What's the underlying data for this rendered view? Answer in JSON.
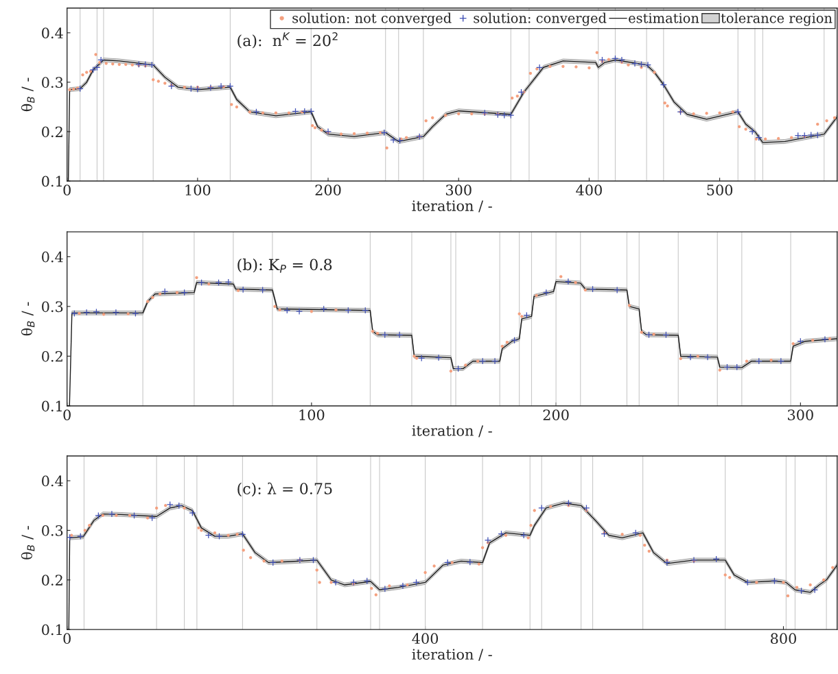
{
  "chart_data": [
    {
      "type": "line",
      "xlabel": "iteration / -",
      "ylabel": "θ$_{B}$ / -",
      "annotations": [
        "(a):  n$^{K}$ = 20$^{2}$"
      ],
      "legend": "top right",
      "xlim": [
        0,
        590
      ],
      "ylim": [
        0.1,
        0.45
      ],
      "xticks": [
        0,
        100,
        200,
        300,
        400,
        500
      ],
      "yticks": [
        0.1,
        0.2,
        0.3,
        0.4
      ],
      "grid": false,
      "ref_lines": [
        {
          "axis": "x",
          "value": 10,
          "color": "#c8c8c8"
        },
        {
          "axis": "x",
          "value": 23,
          "color": "#c8c8c8"
        },
        {
          "axis": "x",
          "value": 28,
          "color": "#c8c8c8"
        },
        {
          "axis": "x",
          "value": 66,
          "color": "#c8c8c8"
        },
        {
          "axis": "x",
          "value": 125,
          "color": "#c8c8c8"
        },
        {
          "axis": "x",
          "value": 187,
          "color": "#c8c8c8"
        },
        {
          "axis": "x",
          "value": 244,
          "color": "#c8c8c8"
        },
        {
          "axis": "x",
          "value": 254,
          "color": "#c8c8c8"
        },
        {
          "axis": "x",
          "value": 273,
          "color": "#c8c8c8"
        },
        {
          "axis": "x",
          "value": 340,
          "color": "#c8c8c8"
        },
        {
          "axis": "x",
          "value": 354,
          "color": "#c8c8c8"
        },
        {
          "axis": "x",
          "value": 407,
          "color": "#c8c8c8"
        },
        {
          "axis": "x",
          "value": 420,
          "color": "#c8c8c8"
        },
        {
          "axis": "x",
          "value": 444,
          "color": "#c8c8c8"
        },
        {
          "axis": "x",
          "value": 457,
          "color": "#c8c8c8"
        },
        {
          "axis": "x",
          "value": 514,
          "color": "#c8c8c8"
        },
        {
          "axis": "x",
          "value": 527,
          "color": "#c8c8c8"
        },
        {
          "axis": "x",
          "value": 533,
          "color": "#c8c8c8"
        },
        {
          "axis": "x",
          "value": 580,
          "color": "#c8c8c8"
        }
      ],
      "series": [
        {
          "name": "solution: not converged",
          "type": "scatter",
          "marker": "circle",
          "color": "#f4a07f",
          "x": [
            2,
            5,
            8,
            12,
            15,
            18,
            22,
            25,
            30,
            35,
            40,
            45,
            50,
            55,
            60,
            66,
            70,
            75,
            80,
            90,
            100,
            110,
            120,
            126,
            130,
            140,
            150,
            160,
            170,
            180,
            188,
            190,
            195,
            200,
            210,
            220,
            230,
            240,
            245,
            256,
            260,
            270,
            275,
            280,
            290,
            300,
            310,
            320,
            330,
            341,
            345,
            350,
            355,
            360,
            370,
            380,
            390,
            400,
            406,
            410,
            415,
            425,
            430,
            440,
            450,
            458,
            460,
            470,
            480,
            490,
            500,
            510,
            515,
            520,
            528,
            535,
            545,
            555,
            565,
            575,
            582,
            588
          ],
          "values": [
            0.285,
            0.286,
            0.288,
            0.315,
            0.32,
            0.322,
            0.356,
            0.34,
            0.338,
            0.337,
            0.336,
            0.336,
            0.335,
            0.334,
            0.333,
            0.305,
            0.302,
            0.298,
            0.294,
            0.29,
            0.29,
            0.29,
            0.291,
            0.255,
            0.25,
            0.24,
            0.238,
            0.238,
            0.238,
            0.24,
            0.212,
            0.208,
            0.203,
            0.198,
            0.195,
            0.196,
            0.197,
            0.198,
            0.167,
            0.185,
            0.188,
            0.19,
            0.222,
            0.228,
            0.233,
            0.236,
            0.236,
            0.236,
            0.236,
            0.268,
            0.272,
            0.28,
            0.318,
            0.327,
            0.332,
            0.332,
            0.331,
            0.329,
            0.36,
            0.342,
            0.346,
            0.34,
            0.335,
            0.33,
            0.32,
            0.258,
            0.252,
            0.24,
            0.236,
            0.237,
            0.238,
            0.24,
            0.21,
            0.205,
            0.185,
            0.185,
            0.186,
            0.188,
            0.19,
            0.215,
            0.222,
            0.228
          ]
        },
        {
          "name": "solution: converged",
          "type": "scatter",
          "marker": "cross",
          "color": "#3f4fb4",
          "x": [
            10,
            20,
            23,
            26,
            55,
            60,
            65,
            80,
            95,
            100,
            110,
            118,
            125,
            145,
            175,
            182,
            187,
            200,
            243,
            250,
            255,
            270,
            320,
            330,
            335,
            340,
            348,
            362,
            410,
            420,
            425,
            435,
            440,
            445,
            457,
            470,
            514,
            525,
            530,
            560,
            565,
            570,
            575
          ],
          "values": [
            0.287,
            0.325,
            0.33,
            0.345,
            0.336,
            0.336,
            0.335,
            0.292,
            0.287,
            0.286,
            0.289,
            0.292,
            0.292,
            0.24,
            0.241,
            0.241,
            0.241,
            0.2,
            0.198,
            0.183,
            0.182,
            0.19,
            0.238,
            0.234,
            0.233,
            0.233,
            0.28,
            0.33,
            0.345,
            0.348,
            0.345,
            0.338,
            0.336,
            0.335,
            0.295,
            0.24,
            0.24,
            0.2,
            0.188,
            0.192,
            0.192,
            0.193,
            0.193
          ]
        },
        {
          "name": "estimation",
          "type": "line",
          "line_style": "solid",
          "color": "#1a1a1a",
          "x": [
            0,
            1,
            2,
            10,
            15,
            20,
            28,
            40,
            66,
            75,
            85,
            100,
            125,
            130,
            140,
            160,
            187,
            192,
            200,
            220,
            244,
            250,
            254,
            273,
            280,
            290,
            300,
            340,
            350,
            365,
            380,
            405,
            407,
            412,
            420,
            444,
            450,
            457,
            465,
            475,
            490,
            514,
            520,
            527,
            533,
            550,
            570,
            580,
            590
          ],
          "values": [
            0.1,
            0.1,
            0.285,
            0.287,
            0.3,
            0.325,
            0.345,
            0.343,
            0.335,
            0.31,
            0.29,
            0.285,
            0.29,
            0.265,
            0.24,
            0.232,
            0.24,
            0.21,
            0.195,
            0.19,
            0.198,
            0.187,
            0.18,
            0.19,
            0.21,
            0.235,
            0.242,
            0.235,
            0.28,
            0.33,
            0.343,
            0.34,
            0.33,
            0.34,
            0.345,
            0.335,
            0.32,
            0.295,
            0.26,
            0.235,
            0.225,
            0.24,
            0.215,
            0.2,
            0.178,
            0.18,
            0.19,
            0.195,
            0.23
          ],
          "lower": [
            null,
            null,
            0.281,
            0.283,
            0.296,
            0.321,
            0.341,
            0.339,
            0.331,
            0.306,
            0.286,
            0.281,
            0.286,
            0.261,
            0.236,
            0.228,
            0.236,
            0.206,
            0.191,
            0.186,
            0.194,
            0.183,
            0.176,
            0.186,
            0.206,
            0.231,
            0.238,
            0.231,
            0.276,
            0.326,
            0.339,
            0.336,
            0.326,
            0.336,
            0.341,
            0.331,
            0.316,
            0.291,
            0.256,
            0.231,
            0.221,
            0.236,
            0.211,
            0.196,
            0.174,
            0.176,
            0.186,
            0.191,
            0.226
          ],
          "upper": [
            null,
            null,
            0.289,
            0.291,
            0.304,
            0.329,
            0.349,
            0.347,
            0.339,
            0.314,
            0.294,
            0.289,
            0.294,
            0.269,
            0.244,
            0.236,
            0.244,
            0.214,
            0.199,
            0.194,
            0.202,
            0.191,
            0.184,
            0.194,
            0.214,
            0.239,
            0.246,
            0.239,
            0.284,
            0.334,
            0.347,
            0.344,
            0.334,
            0.344,
            0.349,
            0.339,
            0.324,
            0.299,
            0.264,
            0.239,
            0.229,
            0.244,
            0.219,
            0.204,
            0.182,
            0.184,
            0.194,
            0.199,
            0.234
          ]
        },
        {
          "name": "tolerance region",
          "type": "area",
          "color": "#d3d3d3"
        }
      ]
    },
    {
      "type": "line",
      "xlabel": "iteration / -",
      "ylabel": "θ$_{B}$ / -",
      "annotations": [
        "(b): K$_{P}$ = 0.8"
      ],
      "xlim": [
        0,
        315
      ],
      "ylim": [
        0.1,
        0.45
      ],
      "xticks": [
        0,
        100,
        200,
        300
      ],
      "yticks": [
        0.1,
        0.2,
        0.3,
        0.4
      ],
      "grid": false,
      "ref_lines": [
        {
          "axis": "x",
          "value": 31,
          "color": "#c8c8c8"
        },
        {
          "axis": "x",
          "value": 52,
          "color": "#c8c8c8"
        },
        {
          "axis": "x",
          "value": 68,
          "color": "#c8c8c8"
        },
        {
          "axis": "x",
          "value": 84,
          "color": "#c8c8c8"
        },
        {
          "axis": "x",
          "value": 124,
          "color": "#c8c8c8"
        },
        {
          "axis": "x",
          "value": 141,
          "color": "#c8c8c8"
        },
        {
          "axis": "x",
          "value": 157,
          "color": "#c8c8c8"
        },
        {
          "axis": "x",
          "value": 159,
          "color": "#c8c8c8"
        },
        {
          "axis": "x",
          "value": 177,
          "color": "#c8c8c8"
        },
        {
          "axis": "x",
          "value": 185,
          "color": "#c8c8c8"
        },
        {
          "axis": "x",
          "value": 190,
          "color": "#c8c8c8"
        },
        {
          "axis": "x",
          "value": 200,
          "color": "#c8c8c8"
        },
        {
          "axis": "x",
          "value": 210,
          "color": "#c8c8c8"
        },
        {
          "axis": "x",
          "value": 229,
          "color": "#c8c8c8"
        },
        {
          "axis": "x",
          "value": 234,
          "color": "#c8c8c8"
        },
        {
          "axis": "x",
          "value": 250,
          "color": "#c8c8c8"
        },
        {
          "axis": "x",
          "value": 266,
          "color": "#c8c8c8"
        },
        {
          "axis": "x",
          "value": 276,
          "color": "#c8c8c8"
        },
        {
          "axis": "x",
          "value": 296,
          "color": "#c8c8c8"
        }
      ],
      "series": [
        {
          "type": "scatter",
          "marker": "circle",
          "color": "#f4a07f",
          "x": [
            5,
            15,
            25,
            33,
            35,
            38,
            45,
            53,
            58,
            70,
            85,
            87,
            100,
            110,
            125,
            127,
            142,
            143,
            157,
            163,
            168,
            178,
            180,
            185,
            186,
            192,
            202,
            208,
            212,
            230,
            235,
            240,
            251,
            258,
            267,
            278,
            288,
            297,
            305,
            312
          ],
          "values": [
            0.286,
            0.284,
            0.285,
            0.31,
            0.318,
            0.325,
            0.328,
            0.358,
            0.345,
            0.332,
            0.3,
            0.293,
            0.29,
            0.293,
            0.25,
            0.246,
            0.2,
            0.196,
            0.17,
            0.182,
            0.19,
            0.22,
            0.228,
            0.285,
            0.28,
            0.322,
            0.36,
            0.348,
            0.333,
            0.302,
            0.248,
            0.244,
            0.195,
            0.2,
            0.172,
            0.19,
            0.192,
            0.225,
            0.232,
            0.235
          ]
        },
        {
          "type": "scatter",
          "marker": "cross",
          "color": "#3f4fb4",
          "x": [
            3,
            8,
            12,
            20,
            28,
            40,
            48,
            55,
            62,
            66,
            72,
            80,
            90,
            95,
            105,
            115,
            122,
            130,
            136,
            145,
            152,
            160,
            170,
            175,
            183,
            188,
            196,
            205,
            215,
            225,
            238,
            245,
            255,
            262,
            270,
            274,
            283,
            292,
            300,
            310
          ],
          "values": [
            0.286,
            0.288,
            0.289,
            0.288,
            0.286,
            0.33,
            0.328,
            0.348,
            0.348,
            0.349,
            0.334,
            0.333,
            0.292,
            0.29,
            0.295,
            0.292,
            0.292,
            0.243,
            0.243,
            0.196,
            0.197,
            0.175,
            0.19,
            0.19,
            0.232,
            0.282,
            0.328,
            0.35,
            0.335,
            0.333,
            0.243,
            0.243,
            0.198,
            0.198,
            0.178,
            0.178,
            0.19,
            0.19,
            0.23,
            0.234
          ]
        },
        {
          "type": "line",
          "line_style": "solid",
          "color": "#1a1a1a",
          "x": [
            0,
            1,
            2,
            31,
            33,
            36,
            52,
            53,
            68,
            69,
            84,
            86,
            124,
            125,
            127,
            141,
            142,
            157,
            158,
            162,
            166,
            177,
            178,
            182,
            185,
            186,
            190,
            191,
            199,
            200,
            210,
            212,
            229,
            230,
            234,
            235,
            237,
            250,
            251,
            266,
            267,
            276,
            280,
            296,
            297,
            302,
            315
          ],
          "values": [
            0.1,
            0.1,
            0.287,
            0.287,
            0.31,
            0.325,
            0.328,
            0.348,
            0.345,
            0.335,
            0.333,
            0.295,
            0.292,
            0.25,
            0.243,
            0.242,
            0.2,
            0.197,
            0.175,
            0.175,
            0.19,
            0.19,
            0.215,
            0.23,
            0.235,
            0.275,
            0.28,
            0.32,
            0.33,
            0.35,
            0.347,
            0.335,
            0.333,
            0.3,
            0.295,
            0.25,
            0.243,
            0.242,
            0.2,
            0.198,
            0.178,
            0.177,
            0.19,
            0.19,
            0.22,
            0.23,
            0.235
          ],
          "lower": [
            null,
            null,
            0.283,
            0.283,
            0.306,
            0.321,
            0.324,
            0.344,
            0.341,
            0.331,
            0.329,
            0.291,
            0.288,
            0.246,
            0.239,
            0.238,
            0.196,
            0.193,
            0.171,
            0.171,
            0.186,
            0.186,
            0.211,
            0.226,
            0.231,
            0.271,
            0.276,
            0.316,
            0.326,
            0.346,
            0.343,
            0.331,
            0.329,
            0.296,
            0.291,
            0.246,
            0.239,
            0.238,
            0.196,
            0.194,
            0.174,
            0.173,
            0.186,
            0.186,
            0.216,
            0.226,
            0.231
          ],
          "upper": [
            null,
            null,
            0.291,
            0.291,
            0.314,
            0.329,
            0.332,
            0.352,
            0.349,
            0.339,
            0.337,
            0.299,
            0.296,
            0.254,
            0.247,
            0.246,
            0.204,
            0.201,
            0.179,
            0.179,
            0.194,
            0.194,
            0.219,
            0.234,
            0.239,
            0.279,
            0.284,
            0.324,
            0.334,
            0.354,
            0.351,
            0.339,
            0.337,
            0.304,
            0.299,
            0.254,
            0.247,
            0.246,
            0.204,
            0.202,
            0.182,
            0.181,
            0.194,
            0.194,
            0.224,
            0.234,
            0.239
          ]
        }
      ]
    },
    {
      "type": "line",
      "xlabel": "iteration / -",
      "ylabel": "θ$_{B}$ / -",
      "annotations": [
        "(c): λ = 0.75"
      ],
      "xlim": [
        0,
        860
      ],
      "ylim": [
        0.1,
        0.45
      ],
      "xticks": [
        0,
        400,
        800
      ],
      "yticks": [
        0.1,
        0.2,
        0.3,
        0.4
      ],
      "grid": false,
      "ref_lines": [
        {
          "axis": "x",
          "value": 19,
          "color": "#c8c8c8"
        },
        {
          "axis": "x",
          "value": 100,
          "color": "#c8c8c8"
        },
        {
          "axis": "x",
          "value": 131,
          "color": "#c8c8c8"
        },
        {
          "axis": "x",
          "value": 145,
          "color": "#c8c8c8"
        },
        {
          "axis": "x",
          "value": 196,
          "color": "#c8c8c8"
        },
        {
          "axis": "x",
          "value": 279,
          "color": "#c8c8c8"
        },
        {
          "axis": "x",
          "value": 339,
          "color": "#c8c8c8"
        },
        {
          "axis": "x",
          "value": 349,
          "color": "#c8c8c8"
        },
        {
          "axis": "x",
          "value": 400,
          "color": "#c8c8c8"
        },
        {
          "axis": "x",
          "value": 464,
          "color": "#c8c8c8"
        },
        {
          "axis": "x",
          "value": 517,
          "color": "#c8c8c8"
        },
        {
          "axis": "x",
          "value": 530,
          "color": "#c8c8c8"
        },
        {
          "axis": "x",
          "value": 574,
          "color": "#c8c8c8"
        },
        {
          "axis": "x",
          "value": 587,
          "color": "#c8c8c8"
        },
        {
          "axis": "x",
          "value": 643,
          "color": "#c8c8c8"
        },
        {
          "axis": "x",
          "value": 735,
          "color": "#c8c8c8"
        },
        {
          "axis": "x",
          "value": 803,
          "color": "#c8c8c8"
        },
        {
          "axis": "x",
          "value": 813,
          "color": "#c8c8c8"
        },
        {
          "axis": "x",
          "value": 848,
          "color": "#c8c8c8"
        }
      ],
      "series": [
        {
          "type": "scatter",
          "marker": "circle",
          "color": "#f4a07f",
          "x": [
            5,
            20,
            25,
            40,
            55,
            70,
            90,
            100,
            110,
            131,
            147,
            150,
            165,
            180,
            190,
            197,
            205,
            220,
            240,
            260,
            279,
            282,
            295,
            320,
            340,
            345,
            360,
            380,
            400,
            410,
            430,
            460,
            464,
            470,
            490,
            515,
            518,
            522,
            540,
            560,
            580,
            600,
            620,
            640,
            645,
            650,
            670,
            700,
            735,
            740,
            770,
            800,
            805,
            815,
            830,
            845,
            855
          ],
          "values": [
            0.29,
            0.3,
            0.31,
            0.33,
            0.33,
            0.33,
            0.325,
            0.345,
            0.35,
            0.345,
            0.305,
            0.3,
            0.295,
            0.29,
            0.292,
            0.26,
            0.245,
            0.238,
            0.238,
            0.24,
            0.22,
            0.195,
            0.195,
            0.192,
            0.183,
            0.17,
            0.188,
            0.19,
            0.215,
            0.228,
            0.235,
            0.232,
            0.265,
            0.275,
            0.29,
            0.285,
            0.31,
            0.34,
            0.348,
            0.35,
            0.34,
            0.295,
            0.292,
            0.29,
            0.27,
            0.258,
            0.24,
            0.238,
            0.21,
            0.205,
            0.195,
            0.195,
            0.168,
            0.185,
            0.19,
            0.2,
            0.225
          ]
        },
        {
          "type": "scatter",
          "marker": "cross",
          "color": "#3f4fb4",
          "x": [
            3,
            15,
            35,
            50,
            75,
            95,
            115,
            125,
            140,
            158,
            170,
            196,
            230,
            260,
            275,
            300,
            320,
            335,
            355,
            375,
            390,
            425,
            450,
            470,
            485,
            510,
            530,
            560,
            580,
            600,
            635,
            670,
            700,
            725,
            760,
            790,
            820,
            835
          ],
          "values": [
            0.286,
            0.288,
            0.33,
            0.333,
            0.33,
            0.325,
            0.352,
            0.35,
            0.335,
            0.29,
            0.288,
            0.292,
            0.235,
            0.24,
            0.24,
            0.195,
            0.195,
            0.198,
            0.182,
            0.188,
            0.195,
            0.235,
            0.236,
            0.28,
            0.293,
            0.29,
            0.345,
            0.355,
            0.345,
            0.293,
            0.295,
            0.235,
            0.24,
            0.242,
            0.195,
            0.198,
            0.178,
            0.18
          ]
        },
        {
          "type": "line",
          "line_style": "solid",
          "color": "#1a1a1a",
          "x": [
            0,
            2,
            3,
            18,
            30,
            40,
            60,
            100,
            115,
            128,
            140,
            150,
            165,
            180,
            196,
            210,
            225,
            250,
            279,
            295,
            310,
            339,
            349,
            370,
            400,
            420,
            440,
            464,
            472,
            490,
            517,
            522,
            535,
            555,
            574,
            590,
            605,
            620,
            643,
            655,
            670,
            700,
            735,
            745,
            760,
            790,
            803,
            813,
            830,
            840,
            848,
            860
          ],
          "values": [
            0.1,
            0.1,
            0.285,
            0.287,
            0.32,
            0.333,
            0.332,
            0.328,
            0.345,
            0.35,
            0.34,
            0.305,
            0.288,
            0.288,
            0.293,
            0.255,
            0.235,
            0.237,
            0.24,
            0.2,
            0.19,
            0.197,
            0.18,
            0.185,
            0.195,
            0.23,
            0.238,
            0.235,
            0.275,
            0.295,
            0.29,
            0.31,
            0.345,
            0.355,
            0.35,
            0.32,
            0.29,
            0.285,
            0.295,
            0.255,
            0.233,
            0.24,
            0.24,
            0.21,
            0.195,
            0.198,
            0.195,
            0.18,
            0.175,
            0.19,
            0.2,
            0.23
          ],
          "lower": [
            null,
            null,
            0.281,
            0.283,
            0.316,
            0.329,
            0.328,
            0.324,
            0.341,
            0.346,
            0.336,
            0.301,
            0.284,
            0.284,
            0.289,
            0.251,
            0.231,
            0.233,
            0.236,
            0.196,
            0.186,
            0.193,
            0.176,
            0.181,
            0.191,
            0.226,
            0.234,
            0.231,
            0.271,
            0.291,
            0.286,
            0.306,
            0.341,
            0.351,
            0.346,
            0.316,
            0.286,
            0.281,
            0.291,
            0.251,
            0.229,
            0.236,
            0.236,
            0.206,
            0.191,
            0.194,
            0.191,
            0.176,
            0.171,
            0.186,
            0.196,
            0.226
          ],
          "upper": [
            null,
            null,
            0.289,
            0.291,
            0.324,
            0.337,
            0.336,
            0.332,
            0.349,
            0.354,
            0.344,
            0.309,
            0.292,
            0.292,
            0.297,
            0.259,
            0.239,
            0.241,
            0.244,
            0.204,
            0.194,
            0.201,
            0.184,
            0.189,
            0.199,
            0.234,
            0.242,
            0.239,
            0.279,
            0.299,
            0.294,
            0.314,
            0.349,
            0.359,
            0.354,
            0.324,
            0.294,
            0.289,
            0.299,
            0.259,
            0.237,
            0.244,
            0.244,
            0.214,
            0.199,
            0.202,
            0.199,
            0.184,
            0.179,
            0.194,
            0.204,
            0.234
          ]
        }
      ]
    }
  ]
}
